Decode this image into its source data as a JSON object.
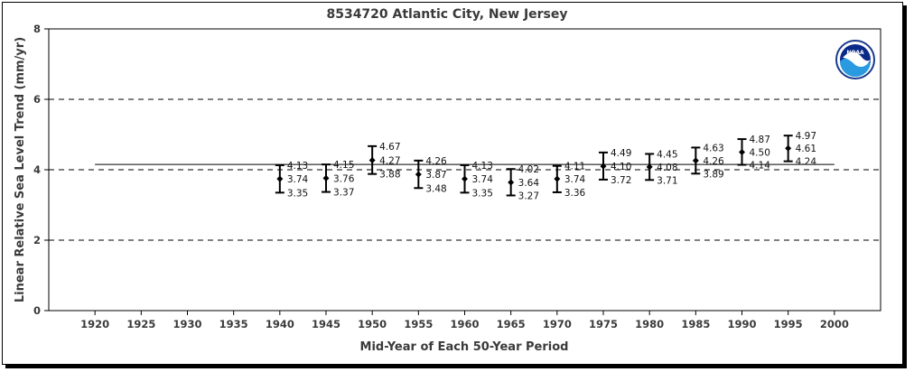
{
  "chart_data": {
    "type": "scatter",
    "title": "8534720 Atlantic City, New Jersey",
    "xlabel": "Mid-Year of Each 50-Year Period",
    "ylabel": "Linear Relative Sea Level Trend (mm/yr)",
    "xlim": [
      1915,
      2005
    ],
    "ylim": [
      0,
      8
    ],
    "xticks": [
      1920,
      1925,
      1930,
      1935,
      1940,
      1945,
      1950,
      1955,
      1960,
      1965,
      1970,
      1975,
      1980,
      1985,
      1990,
      1995,
      2000
    ],
    "yticks": [
      0,
      2,
      4,
      6,
      8
    ],
    "grid_dashed_y": [
      2,
      4,
      6
    ],
    "reference_line": {
      "value": 4.15,
      "from_x": 1920,
      "to_x": 2000
    },
    "logo": "NOAA",
    "points": [
      {
        "x": 1940,
        "y": 3.74,
        "upper": 4.13,
        "lower": 3.35
      },
      {
        "x": 1945,
        "y": 3.76,
        "upper": 4.15,
        "lower": 3.37
      },
      {
        "x": 1950,
        "y": 4.27,
        "upper": 4.67,
        "lower": 3.88
      },
      {
        "x": 1955,
        "y": 3.87,
        "upper": 4.26,
        "lower": 3.48
      },
      {
        "x": 1960,
        "y": 3.74,
        "upper": 4.13,
        "lower": 3.35
      },
      {
        "x": 1965,
        "y": 3.64,
        "upper": 4.02,
        "lower": 3.27
      },
      {
        "x": 1970,
        "y": 3.74,
        "upper": 4.11,
        "lower": 3.36
      },
      {
        "x": 1975,
        "y": 4.1,
        "upper": 4.49,
        "lower": 3.72
      },
      {
        "x": 1980,
        "y": 4.08,
        "upper": 4.45,
        "lower": 3.71
      },
      {
        "x": 1985,
        "y": 4.26,
        "upper": 4.63,
        "lower": 3.89
      },
      {
        "x": 1990,
        "y": 4.5,
        "upper": 4.87,
        "lower": 4.14
      },
      {
        "x": 1995,
        "y": 4.61,
        "upper": 4.97,
        "lower": 4.24
      }
    ]
  }
}
